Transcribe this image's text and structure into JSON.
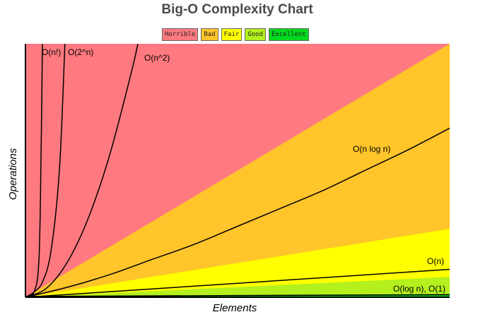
{
  "chart_data": {
    "type": "line",
    "title": "Big-O Complexity Chart",
    "xlabel": "Elements",
    "ylabel": "Operations",
    "grid": false,
    "legend_position": "top",
    "xlim": [
      0,
      100
    ],
    "ylim": [
      0,
      100
    ],
    "regions": [
      {
        "name": "Horrible",
        "color": "#FF7A80",
        "upper": "top"
      },
      {
        "name": "Bad",
        "color": "#FFC52A",
        "upper_slope": 1.0
      },
      {
        "name": "Fair",
        "color": "#FFFF00",
        "upper_slope": 0.27
      },
      {
        "name": "Good",
        "color": "#B4F01E",
        "upper_slope": 0.08
      },
      {
        "name": "Excellent",
        "color": "#00D91E",
        "upper_slope": 0.012
      }
    ],
    "series": [
      {
        "name": "O(n!)",
        "x": [
          0,
          1,
          2,
          3,
          3.5,
          4
        ],
        "y": [
          0,
          0.5,
          2,
          10,
          35,
          100
        ]
      },
      {
        "name": "O(2^n)",
        "x": [
          0,
          2,
          4,
          6,
          8,
          9.3
        ],
        "y": [
          0,
          2,
          6,
          18,
          50,
          100
        ]
      },
      {
        "name": "O(n^2)",
        "x": [
          0,
          5,
          10,
          15,
          20,
          25,
          26.5
        ],
        "y": [
          0,
          3.6,
          14.2,
          32,
          57,
          89,
          100
        ]
      },
      {
        "name": "O(n log n)",
        "x": [
          0,
          10,
          20,
          30,
          40,
          50,
          60,
          70,
          80,
          90,
          100
        ],
        "y": [
          0,
          4,
          9,
          15,
          21,
          28,
          35,
          42,
          50,
          58,
          66.7
        ]
      },
      {
        "name": "O(n)",
        "x": [
          0,
          100
        ],
        "y": [
          0,
          11
        ]
      },
      {
        "name": "O(log n), O(1)",
        "x": [
          0,
          100
        ],
        "y": [
          0.3,
          1
        ]
      }
    ]
  }
}
